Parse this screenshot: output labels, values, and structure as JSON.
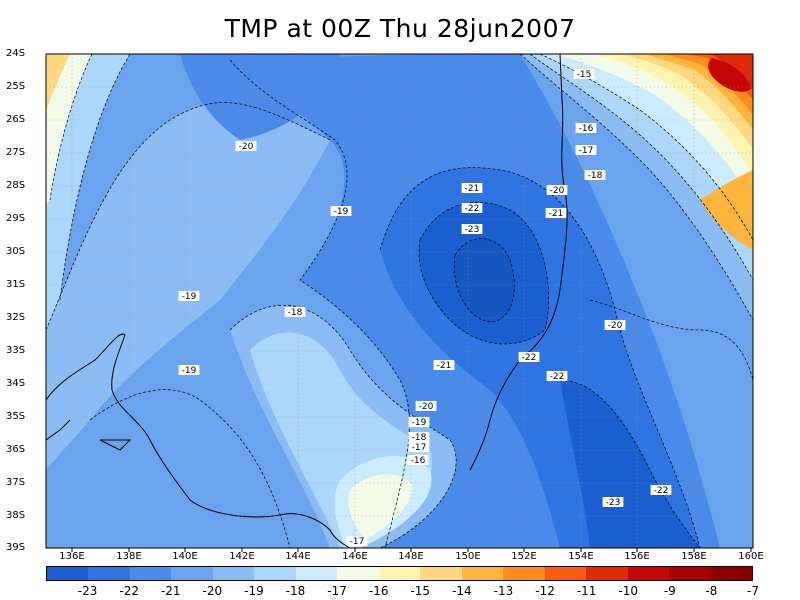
{
  "title": "TMP at 00Z Thu 28jun2007",
  "lat_labels": [
    "24S",
    "25S",
    "26S",
    "27S",
    "28S",
    "29S",
    "30S",
    "31S",
    "32S",
    "33S",
    "34S",
    "35S",
    "36S",
    "37S",
    "38S",
    "39S"
  ],
  "lon_labels": [
    "136E",
    "138E",
    "140E",
    "142E",
    "144E",
    "146E",
    "148E",
    "150E",
    "152E",
    "154E",
    "156E",
    "158E",
    "160E"
  ],
  "colorbar": {
    "colors": [
      "#1a5ed0",
      "#2f74e0",
      "#4a8ae8",
      "#6aa4ef",
      "#8cbcf4",
      "#acd6fa",
      "#ccecfd",
      "#f2fbe8",
      "#fff3b0",
      "#ffd880",
      "#ffb43c",
      "#ff8c1c",
      "#f85c10",
      "#e02a0a",
      "#c40606"
    ],
    "labels": [
      "-23",
      "-22",
      "-21",
      "-20",
      "-19",
      "-18",
      "-17",
      "-16",
      "-15",
      "-14",
      "-13",
      "-12",
      "-11",
      "-10",
      "-9",
      "-8",
      "-7"
    ]
  },
  "contour_labels": [
    "-15",
    "-16",
    "-17",
    "-18",
    "-20",
    "-20",
    "-19",
    "-21",
    "-22",
    "-23",
    "-21",
    "-19",
    "-18",
    "-20",
    "-21",
    "-22",
    "-22",
    "-19",
    "-20",
    "-19",
    "-18",
    "-17",
    "-16",
    "-17",
    "-23",
    "-22"
  ],
  "chart_data": {
    "type": "heatmap",
    "variable": "TMP",
    "time": "00Z Thu 28jun2007",
    "lon_range": [
      135,
      160
    ],
    "lat_range": [
      -39,
      -24
    ],
    "color_levels": [
      -23,
      -22,
      -21,
      -20,
      -19,
      -18,
      -17,
      -16,
      -15,
      -14,
      -13,
      -12,
      -11,
      -10,
      -9,
      -8,
      -7
    ],
    "features": [
      {
        "kind": "min",
        "lon": 150.2,
        "lat": -31.0,
        "value": -23.5
      },
      {
        "kind": "min",
        "lon": 155.5,
        "lat": -37.5,
        "value": -23
      },
      {
        "kind": "max",
        "lon": 159.5,
        "lat": -24.8,
        "value": -7
      },
      {
        "kind": "max",
        "lon": 146.3,
        "lat": -37.3,
        "value": -16
      }
    ]
  }
}
